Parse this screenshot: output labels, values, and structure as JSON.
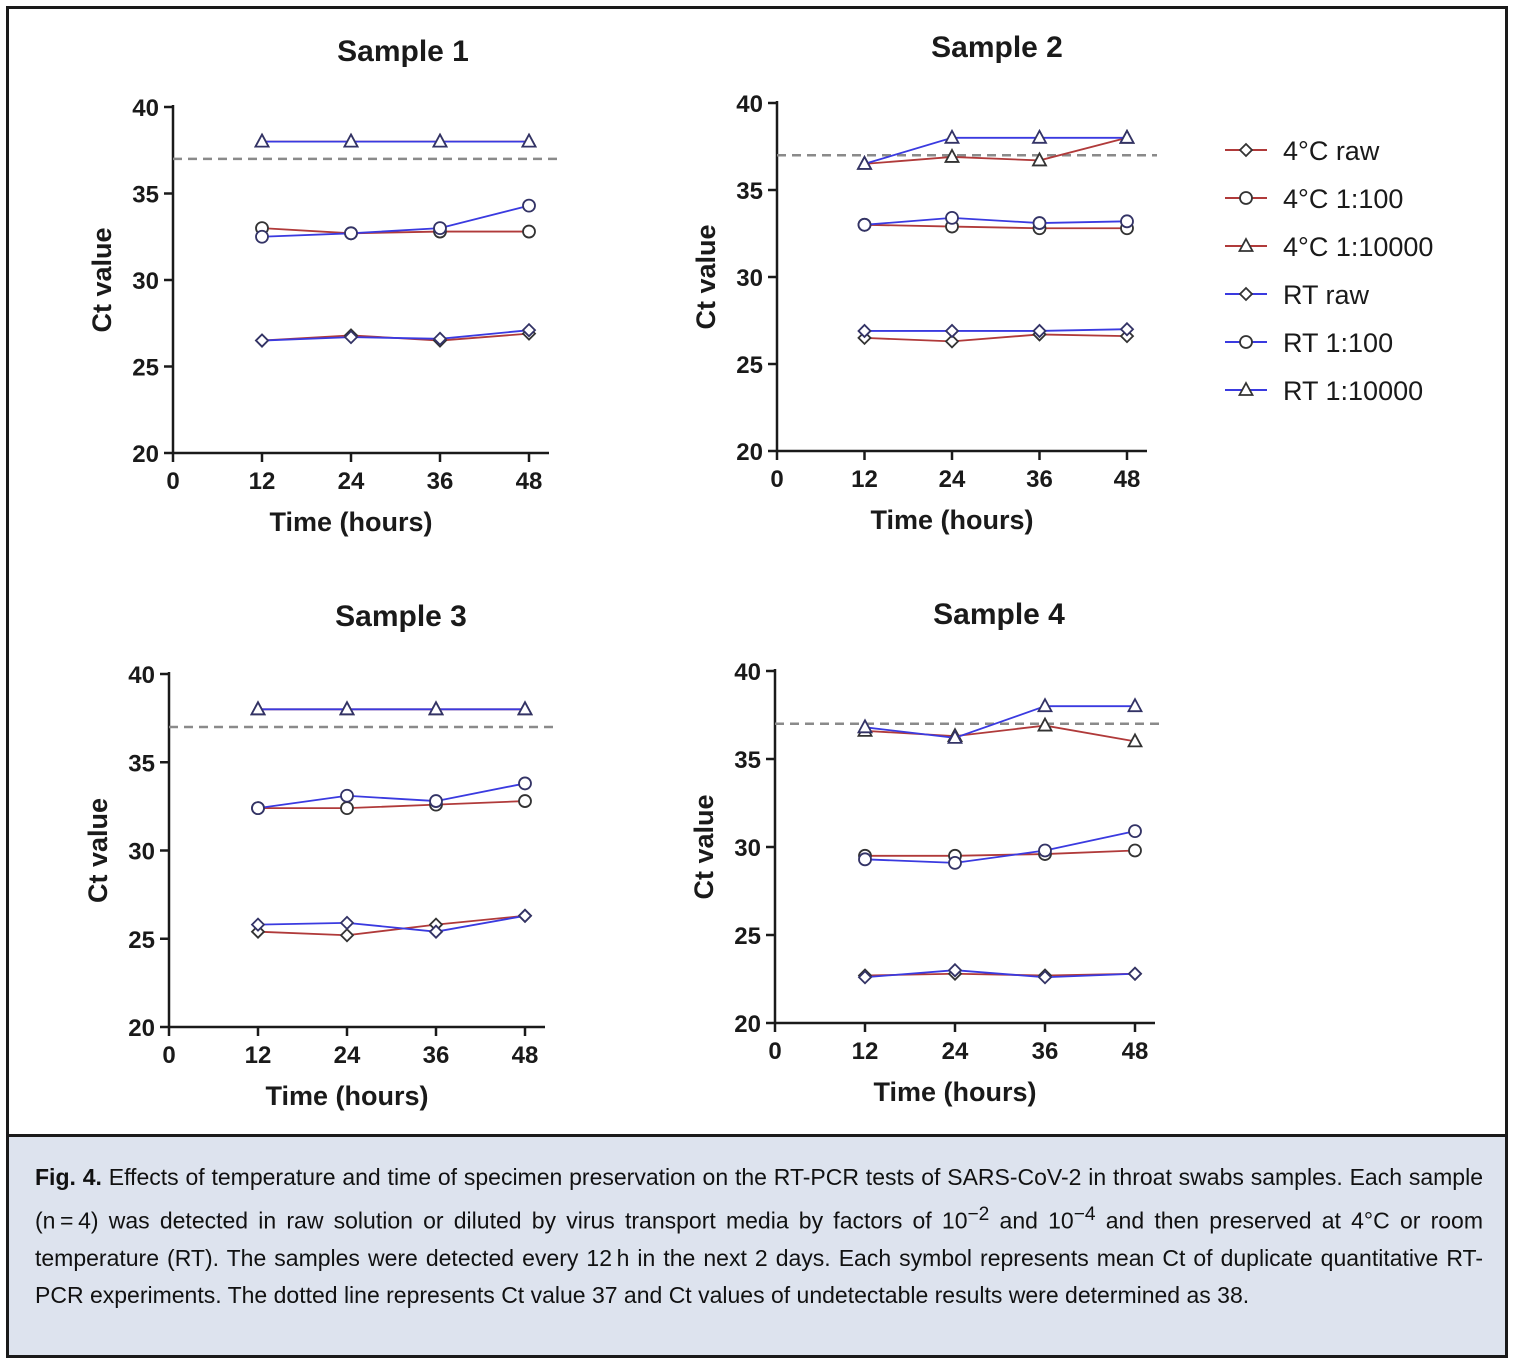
{
  "chart_data": [
    {
      "type": "line",
      "title": "Sample 1",
      "xlabel": "Time (hours)",
      "ylabel": "Ct value",
      "x": [
        12,
        24,
        36,
        48
      ],
      "xticks": [
        "0",
        "12",
        "24",
        "36",
        "48"
      ],
      "yticks": [
        "20",
        "25",
        "30",
        "35",
        "40"
      ],
      "xlim": [
        0,
        48
      ],
      "ylim": [
        20,
        40
      ],
      "reference_line": 37,
      "series": [
        {
          "name": "4°C raw",
          "values": [
            26.5,
            26.8,
            26.5,
            26.9
          ]
        },
        {
          "name": "4°C 1:100",
          "values": [
            33.0,
            32.7,
            32.8,
            32.8
          ]
        },
        {
          "name": "4°C 1:10000",
          "values": [
            38,
            38,
            38,
            38
          ]
        },
        {
          "name": "RT raw",
          "values": [
            26.5,
            26.7,
            26.6,
            27.1
          ]
        },
        {
          "name": "RT 1:100",
          "values": [
            32.5,
            32.7,
            33.0,
            34.3
          ]
        },
        {
          "name": "RT 1:10000",
          "values": [
            38,
            38,
            38,
            38
          ]
        }
      ]
    },
    {
      "type": "line",
      "title": "Sample 2",
      "xlabel": "Time (hours)",
      "ylabel": "Ct value",
      "x": [
        12,
        24,
        36,
        48
      ],
      "xticks": [
        "0",
        "12",
        "24",
        "36",
        "48"
      ],
      "yticks": [
        "20",
        "25",
        "30",
        "35",
        "40"
      ],
      "xlim": [
        0,
        48
      ],
      "ylim": [
        20,
        40
      ],
      "reference_line": 37,
      "series": [
        {
          "name": "4°C raw",
          "values": [
            26.5,
            26.3,
            26.7,
            26.6
          ]
        },
        {
          "name": "4°C 1:100",
          "values": [
            33.0,
            32.9,
            32.8,
            32.8
          ]
        },
        {
          "name": "4°C 1:10000",
          "values": [
            36.5,
            36.9,
            36.7,
            38.0
          ]
        },
        {
          "name": "RT raw",
          "values": [
            26.9,
            26.9,
            26.9,
            27.0
          ]
        },
        {
          "name": "RT 1:100",
          "values": [
            33.0,
            33.4,
            33.1,
            33.2
          ]
        },
        {
          "name": "RT 1:10000",
          "values": [
            36.5,
            38.0,
            38.0,
            38.0
          ]
        }
      ]
    },
    {
      "type": "line",
      "title": "Sample 3",
      "xlabel": "Time (hours)",
      "ylabel": "Ct value",
      "x": [
        12,
        24,
        36,
        48
      ],
      "xticks": [
        "0",
        "12",
        "24",
        "36",
        "48"
      ],
      "yticks": [
        "20",
        "25",
        "30",
        "35",
        "40"
      ],
      "xlim": [
        0,
        48
      ],
      "ylim": [
        20,
        40
      ],
      "reference_line": 37,
      "series": [
        {
          "name": "4°C raw",
          "values": [
            25.4,
            25.2,
            25.8,
            26.3
          ]
        },
        {
          "name": "4°C 1:100",
          "values": [
            32.4,
            32.4,
            32.6,
            32.8
          ]
        },
        {
          "name": "4°C 1:10000",
          "values": [
            38,
            38,
            38,
            38
          ]
        },
        {
          "name": "RT raw",
          "values": [
            25.8,
            25.9,
            25.4,
            26.3
          ]
        },
        {
          "name": "RT 1:100",
          "values": [
            32.4,
            33.1,
            32.8,
            33.8
          ]
        },
        {
          "name": "RT 1:10000",
          "values": [
            38,
            38,
            38,
            38
          ]
        }
      ]
    },
    {
      "type": "line",
      "title": "Sample 4",
      "xlabel": "Time (hours)",
      "ylabel": "Ct value",
      "x": [
        12,
        24,
        36,
        48
      ],
      "xticks": [
        "0",
        "12",
        "24",
        "36",
        "48"
      ],
      "yticks": [
        "20",
        "25",
        "30",
        "35",
        "40"
      ],
      "xlim": [
        0,
        48
      ],
      "ylim": [
        20,
        40
      ],
      "reference_line": 37,
      "series": [
        {
          "name": "4°C raw",
          "values": [
            22.7,
            22.8,
            22.7,
            22.8
          ]
        },
        {
          "name": "4°C 1:100",
          "values": [
            29.5,
            29.5,
            29.6,
            29.8
          ]
        },
        {
          "name": "4°C 1:10000",
          "values": [
            36.6,
            36.3,
            36.9,
            36.0
          ]
        },
        {
          "name": "RT raw",
          "values": [
            22.6,
            23.0,
            22.6,
            22.8
          ]
        },
        {
          "name": "RT 1:100",
          "values": [
            29.3,
            29.1,
            29.8,
            30.9
          ]
        },
        {
          "name": "RT 1:10000",
          "values": [
            36.8,
            36.2,
            38.0,
            38.0
          ]
        }
      ]
    }
  ],
  "legend": [
    {
      "label": "4°C raw",
      "marker": "diamond",
      "color": "#b03a3a"
    },
    {
      "label": "4°C 1:100",
      "marker": "circle",
      "color": "#b03a3a"
    },
    {
      "label": "4°C 1:10000",
      "marker": "triangle",
      "color": "#b03a3a"
    },
    {
      "label": "RT raw",
      "marker": "diamond",
      "color": "#3a3ae0"
    },
    {
      "label": "RT 1:100",
      "marker": "circle",
      "color": "#3a3ae0"
    },
    {
      "label": "RT 1:10000",
      "marker": "triangle",
      "color": "#3a3ae0"
    }
  ],
  "colors": {
    "cold": "#b03a3a",
    "rt": "#3a3ae0",
    "reference": "#8a8a8a",
    "axis": "#1a1a1a",
    "caption_bg": "#dde3ee"
  },
  "caption": {
    "label": "Fig. 4.",
    "p1": " Effects of temperature and time of specimen preservation on the RT-PCR tests of SARS-CoV-2 in throat swabs samples. Each sample (n = 4) was detected in raw solution or diluted by virus transport media by factors of 10",
    "sup1": "−2",
    "p2": " and 10",
    "sup2": "−4",
    "p3": " and then preserved at 4°C or room temperature (RT). The samples were detected every 12 h in the next 2 days. Each symbol represents mean Ct of duplicate quantitative RT-PCR experiments. The dotted line represents Ct value 37 and Ct values of undetectable results were determined as 38."
  }
}
